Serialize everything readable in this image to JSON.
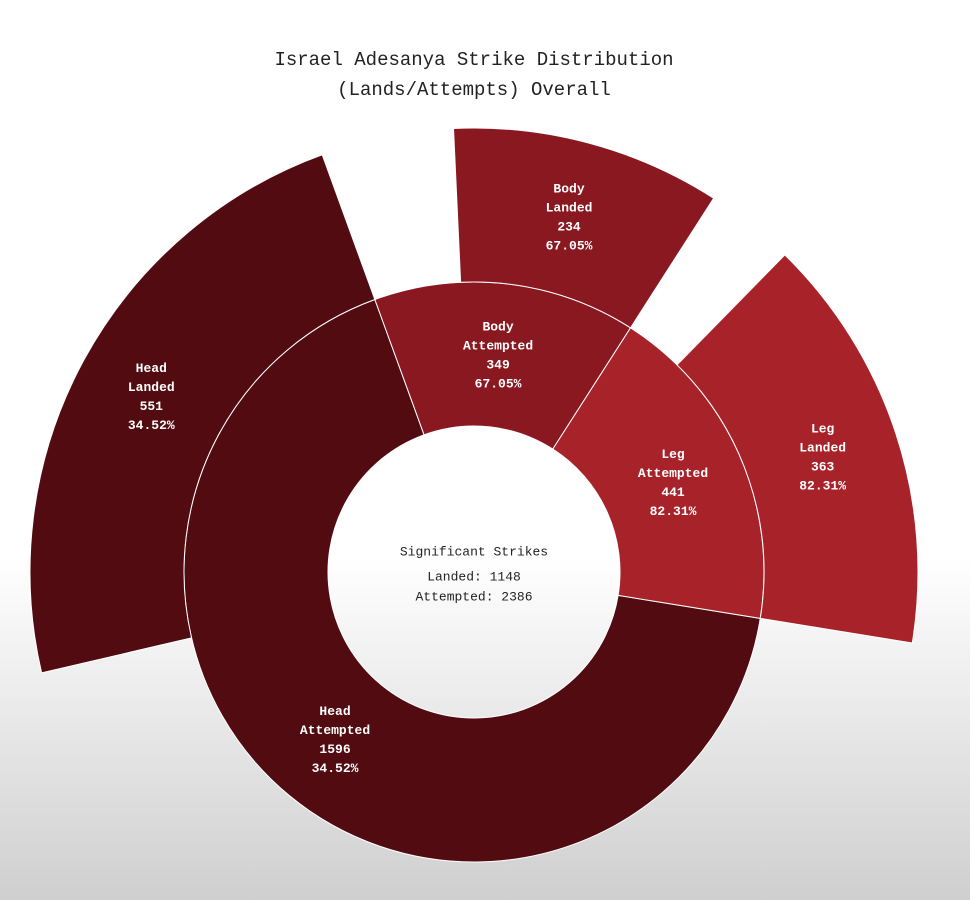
{
  "chart_data": {
    "type": "sunburst",
    "title": "Israel Adesanya Strike Distribution",
    "subtitle": "(Lands/Attempts) Overall",
    "categories": [
      "Head",
      "Body",
      "Leg"
    ],
    "colors": [
      "#520b10",
      "#8a1820",
      "#a8222a"
    ],
    "series": [
      {
        "name": "Attempted",
        "values": [
          1596,
          349,
          441
        ]
      },
      {
        "name": "Landed",
        "values": [
          551,
          234,
          363
        ]
      }
    ],
    "accuracy": {
      "values": [
        34.52,
        67.05,
        82.31
      ],
      "value_labels": [
        "34.52%",
        "67.05%",
        "82.31%"
      ]
    },
    "center_title": "Significant Strikes",
    "center_lines": [
      "Landed: 1148",
      "Attempted: 2386"
    ]
  }
}
